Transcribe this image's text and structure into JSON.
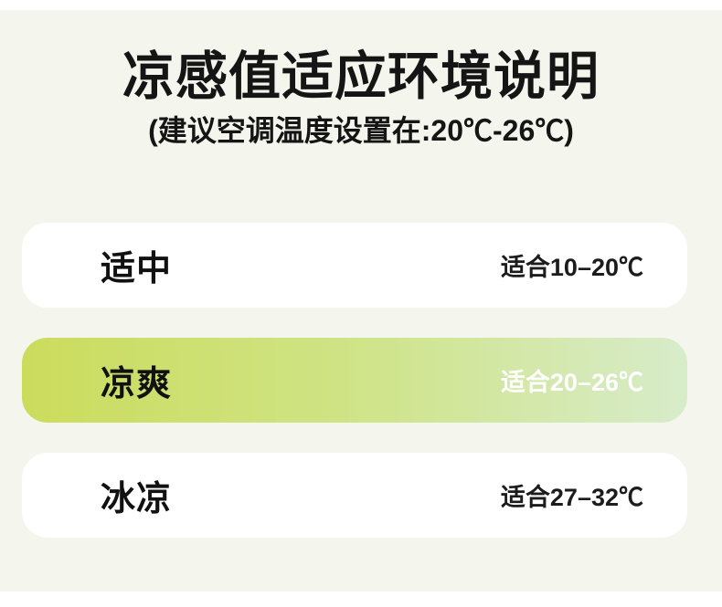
{
  "page": {
    "background": "#ffffff",
    "panel_background": "#f4f5ec"
  },
  "header": {
    "title": "凉感值适应环境说明",
    "subtitle": "(建议空调温度设置在:20℃-26℃)"
  },
  "rows": [
    {
      "label": "适中",
      "range": "适合10–20℃",
      "highlighted": false
    },
    {
      "label": "凉爽",
      "range": "适合20–26℃",
      "highlighted": true
    },
    {
      "label": "冰凉",
      "range": "适合27–32℃",
      "highlighted": false
    }
  ],
  "colors": {
    "highlight_gradient_start": "#cbdc5c",
    "highlight_gradient_mid": "#cfe385",
    "highlight_gradient_end": "#d7ecca",
    "text_dark": "#151515",
    "highlight_range_text": "#ffffff"
  }
}
